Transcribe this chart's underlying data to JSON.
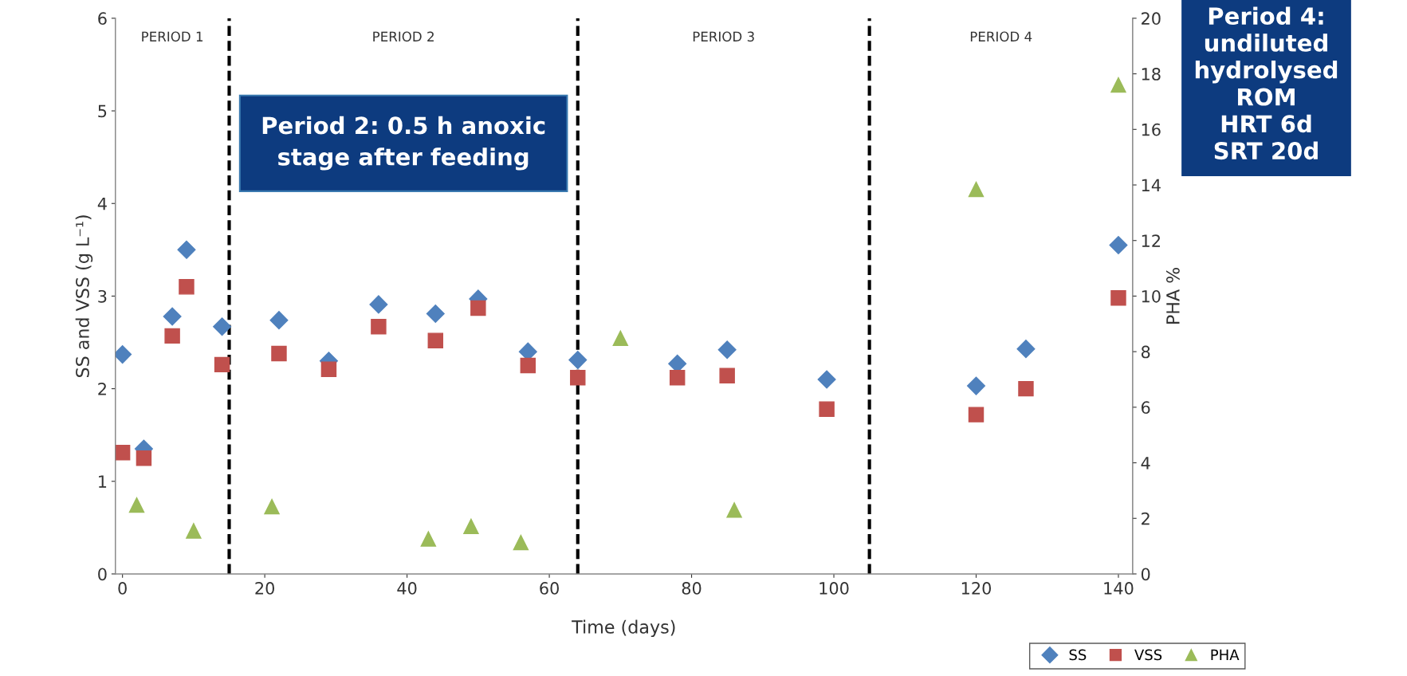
{
  "chart_data": {
    "type": "scatter",
    "xlabel": "Time (days)",
    "ylabel": "SS and VSS (g L⁻¹)",
    "y2label": "PHA %",
    "xlim": [
      -1,
      142
    ],
    "xticks": [
      0,
      20,
      40,
      60,
      80,
      100,
      120,
      140
    ],
    "ylim": [
      0,
      6
    ],
    "yticks": [
      0,
      1,
      2,
      3,
      4,
      5,
      6
    ],
    "y2lim": [
      0,
      20
    ],
    "y2ticks": [
      0,
      2,
      4,
      6,
      8,
      10,
      12,
      14,
      16,
      18,
      20
    ],
    "grid": false,
    "legend": "bottom right",
    "series": [
      {
        "name": "SS",
        "color": "#4f81bd",
        "marker": "diamond",
        "x": [
          0,
          3,
          7,
          9,
          14,
          22,
          29,
          36,
          44,
          50,
          57,
          64,
          78,
          85,
          99,
          120,
          127,
          140
        ],
        "values": [
          2.37,
          1.35,
          2.78,
          3.5,
          2.67,
          2.74,
          2.3,
          2.91,
          2.81,
          2.97,
          2.4,
          2.31,
          2.27,
          2.42,
          2.1,
          2.03,
          2.43,
          3.55
        ]
      },
      {
        "name": "VSS",
        "color": "#c0504d",
        "marker": "square",
        "x": [
          0,
          3,
          7,
          9,
          14,
          22,
          29,
          36,
          44,
          50,
          57,
          64,
          78,
          85,
          99,
          120,
          127,
          140
        ],
        "values": [
          1.31,
          1.25,
          2.57,
          3.1,
          2.26,
          2.38,
          2.21,
          2.67,
          2.52,
          2.87,
          2.25,
          2.12,
          2.12,
          2.14,
          1.78,
          1.72,
          2.0,
          2.98
        ]
      },
      {
        "name": "PHA",
        "color": "#9bbb59",
        "marker": "triangle",
        "axis": "y2",
        "x": [
          2,
          10,
          21,
          43,
          49,
          56,
          70,
          86,
          120,
          140
        ],
        "values": [
          2.48,
          1.55,
          2.42,
          1.26,
          1.71,
          1.13,
          8.48,
          2.3,
          13.84,
          17.6
        ]
      }
    ],
    "ref_lines": [
      {
        "axis": "x",
        "value": 15,
        "color": "#000000",
        "line_style": "dashed"
      },
      {
        "axis": "x",
        "value": 64,
        "color": "#000000",
        "line_style": "dashed"
      },
      {
        "axis": "x",
        "value": 105,
        "color": "#000000",
        "line_style": "dashed"
      }
    ],
    "annotations": [
      "PERIOD 1",
      "PERIOD 2",
      "PERIOD 3",
      "PERIOD 4",
      "Period 2: 0.5 h anoxic\nstage after feeding",
      "Period 4:\nundiluted\nhydrolysed\nROM\nHRT 6d\nSRT 20d"
    ]
  }
}
